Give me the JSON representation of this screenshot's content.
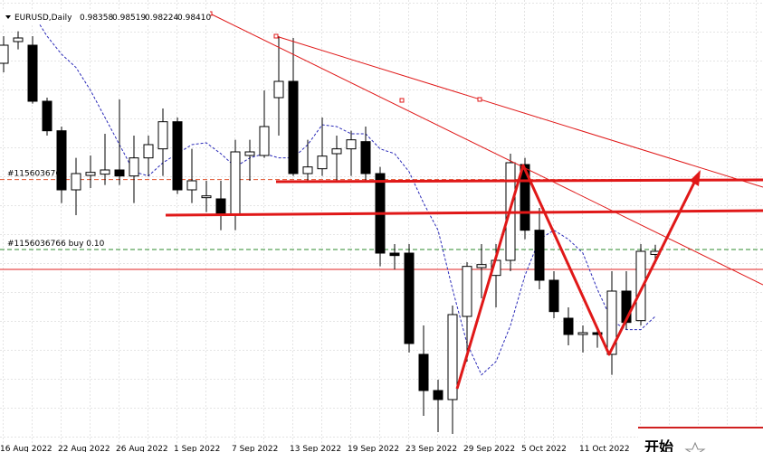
{
  "chart_data": {
    "type": "candlestick",
    "title": "EURUSD,Daily",
    "header_values": [
      {
        "value": 0.98358,
        "label": "0.98358"
      },
      {
        "value": 0.98519,
        "label": "0.98519"
      },
      {
        "value": 0.98224,
        "label": "0.98224"
      },
      {
        "value": 0.9841,
        "label": "0.98410"
      }
    ],
    "ylim": [
      0.9508,
      1.0258
    ],
    "categories": [
      "16 Aug 2022",
      null,
      null,
      null,
      "22 Aug 2022",
      null,
      null,
      null,
      "26 Aug 2022",
      null,
      null,
      null,
      "1 Sep 2022",
      null,
      null,
      null,
      "7 Sep 2022",
      null,
      null,
      null,
      "13 Sep 2022",
      null,
      null,
      null,
      "19 Sep 2022",
      null,
      null,
      null,
      "23 Sep 2022",
      null,
      null,
      null,
      "29 Sep 2022",
      null,
      null,
      null,
      "5 Oct 2022",
      null,
      null,
      null,
      "11 Oct 2022",
      null,
      null,
      null,
      null,
      null
    ],
    "ohlc": [
      [
        1.0153,
        1.0198,
        1.0138,
        1.0183
      ],
      [
        1.0189,
        1.0206,
        1.0176,
        1.0195
      ],
      [
        1.0183,
        1.0198,
        1.0086,
        1.009
      ],
      [
        1.009,
        1.0096,
        1.0033,
        1.0041
      ],
      [
        1.0041,
        1.0048,
        0.9921,
        0.9943
      ],
      [
        0.9943,
        0.9996,
        0.9901,
        0.997
      ],
      [
        0.9967,
        1.0,
        0.9946,
        0.9972
      ],
      [
        0.9969,
        1.0036,
        0.9951,
        0.9976
      ],
      [
        0.9976,
        1.0093,
        0.9951,
        0.9966
      ],
      [
        0.9966,
        1.0033,
        0.9921,
        0.9996
      ],
      [
        0.9996,
        1.0033,
        0.9966,
        1.0018
      ],
      [
        1.0011,
        1.0078,
        0.9966,
        1.0056
      ],
      [
        1.0056,
        1.0063,
        0.9936,
        0.9943
      ],
      [
        0.9943,
        1.0011,
        0.9921,
        0.9958
      ],
      [
        0.993,
        0.9958,
        0.9906,
        0.9933
      ],
      [
        0.9928,
        0.9958,
        0.9876,
        0.9901
      ],
      [
        0.9901,
        1.0026,
        0.9876,
        1.0006
      ],
      [
        1.0,
        1.0026,
        0.9958,
        1.0006
      ],
      [
        1.0,
        1.0108,
        0.9996,
        1.0048
      ],
      [
        1.0096,
        1.0198,
        1.0033,
        1.0123
      ],
      [
        1.0123,
        1.0195,
        0.9966,
        0.997
      ],
      [
        0.997,
        1.0026,
        0.9958,
        0.9981
      ],
      [
        0.9978,
        1.0063,
        0.9966,
        0.9999
      ],
      [
        1.0003,
        1.0033,
        0.9958,
        1.0011
      ],
      [
        1.0011,
        1.0041,
        0.9966,
        1.0026
      ],
      [
        1.0023,
        1.0048,
        0.9958,
        0.997
      ],
      [
        0.997,
        0.9981,
        0.9816,
        0.9838
      ],
      [
        0.9838,
        0.9853,
        0.9811,
        0.9834
      ],
      [
        0.9838,
        0.9853,
        0.9673,
        0.9688
      ],
      [
        0.967,
        0.9718,
        0.9568,
        0.961
      ],
      [
        0.961,
        0.9628,
        0.9541,
        0.9595
      ],
      [
        0.9595,
        0.9751,
        0.9538,
        0.9736
      ],
      [
        0.9733,
        0.9823,
        0.9658,
        0.9816
      ],
      [
        0.9814,
        0.9853,
        0.9763,
        0.9819
      ],
      [
        0.9801,
        0.9853,
        0.9748,
        0.9826
      ],
      [
        0.9826,
        1.0003,
        0.9808,
        0.9988
      ],
      [
        0.9985,
        0.9996,
        0.9861,
        0.9876
      ],
      [
        0.9876,
        0.9913,
        0.9778,
        0.9793
      ],
      [
        0.9793,
        0.9808,
        0.973,
        0.9741
      ],
      [
        0.973,
        0.9748,
        0.9685,
        0.9703
      ],
      [
        0.9703,
        0.9718,
        0.9673,
        0.9706
      ],
      [
        0.9706,
        0.9715,
        0.9681,
        0.9703
      ],
      [
        0.967,
        0.9808,
        0.9636,
        0.9775
      ],
      [
        0.9775,
        0.9808,
        0.9711,
        0.9723
      ],
      [
        0.9726,
        0.9853,
        0.9718,
        0.9841
      ],
      [
        0.98358,
        0.98519,
        0.98224,
        0.9841
      ]
    ],
    "ma": {
      "color": "#2a2ab8",
      "values": [
        null,
        null,
        1.0236,
        1.0198,
        1.0168,
        1.0146,
        1.0108,
        1.0063,
        1.0018,
        0.9973,
        0.9966,
        0.9988,
        1.0003,
        1.0018,
        1.0021,
        1.0003,
        0.9981,
        0.9996,
        1.0003,
        0.9996,
        0.9996,
        1.0018,
        1.0051,
        1.0048,
        1.0036,
        1.0036,
        1.0011,
        1.0003,
        0.9973,
        0.9921,
        0.9876,
        0.9778,
        0.9688,
        0.9636,
        0.9658,
        0.9718,
        0.9801,
        0.9861,
        0.9876,
        0.9861,
        0.9838,
        0.9778,
        0.9726,
        0.9711,
        0.9711,
        0.9733
      ]
    },
    "order_lines": [
      {
        "label": "#1156036766",
        "value": 0.996,
        "color": "#e0502a"
      },
      {
        "label": "#1156036766 buy 0.10",
        "value": 0.9844,
        "color": "#2e8b2e"
      }
    ],
    "bid_line": {
      "value": 0.9811,
      "color": "#e02020"
    },
    "panel_text": "开始"
  }
}
